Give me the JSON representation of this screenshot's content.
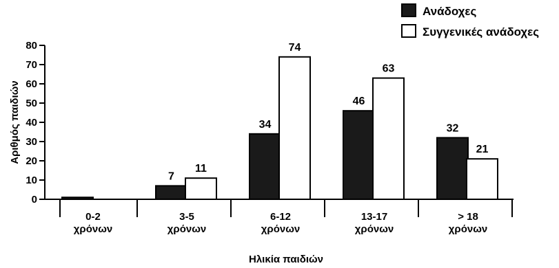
{
  "chart_data": {
    "type": "bar",
    "categories": [
      [
        "0-2",
        "χρόνων"
      ],
      [
        "3-5",
        "χρόνων"
      ],
      [
        "6-12",
        "χρόνων"
      ],
      [
        "13-17",
        "χρόνων"
      ],
      [
        "> 18",
        "χρόνων"
      ]
    ],
    "series": [
      {
        "name": "Ανάδοχες",
        "values": [
          1,
          7,
          34,
          46,
          32
        ],
        "labels": [
          "",
          "7",
          "34",
          "46",
          "32"
        ],
        "color": "#1a1a1a"
      },
      {
        "name": "Συγγενικές ανάδοχες",
        "values": [
          0,
          11,
          74,
          63,
          21
        ],
        "labels": [
          "",
          "11",
          "74",
          "63",
          "21"
        ],
        "color": "#ffffff"
      }
    ],
    "ylim": [
      0,
      80
    ],
    "yticks": [
      0,
      10,
      20,
      30,
      40,
      50,
      60,
      70,
      80
    ],
    "xlabel": "Ηλικία παιδιών",
    "ylabel": "Αριθμός παιδιών",
    "legend_position": "top-right",
    "grid": false
  }
}
